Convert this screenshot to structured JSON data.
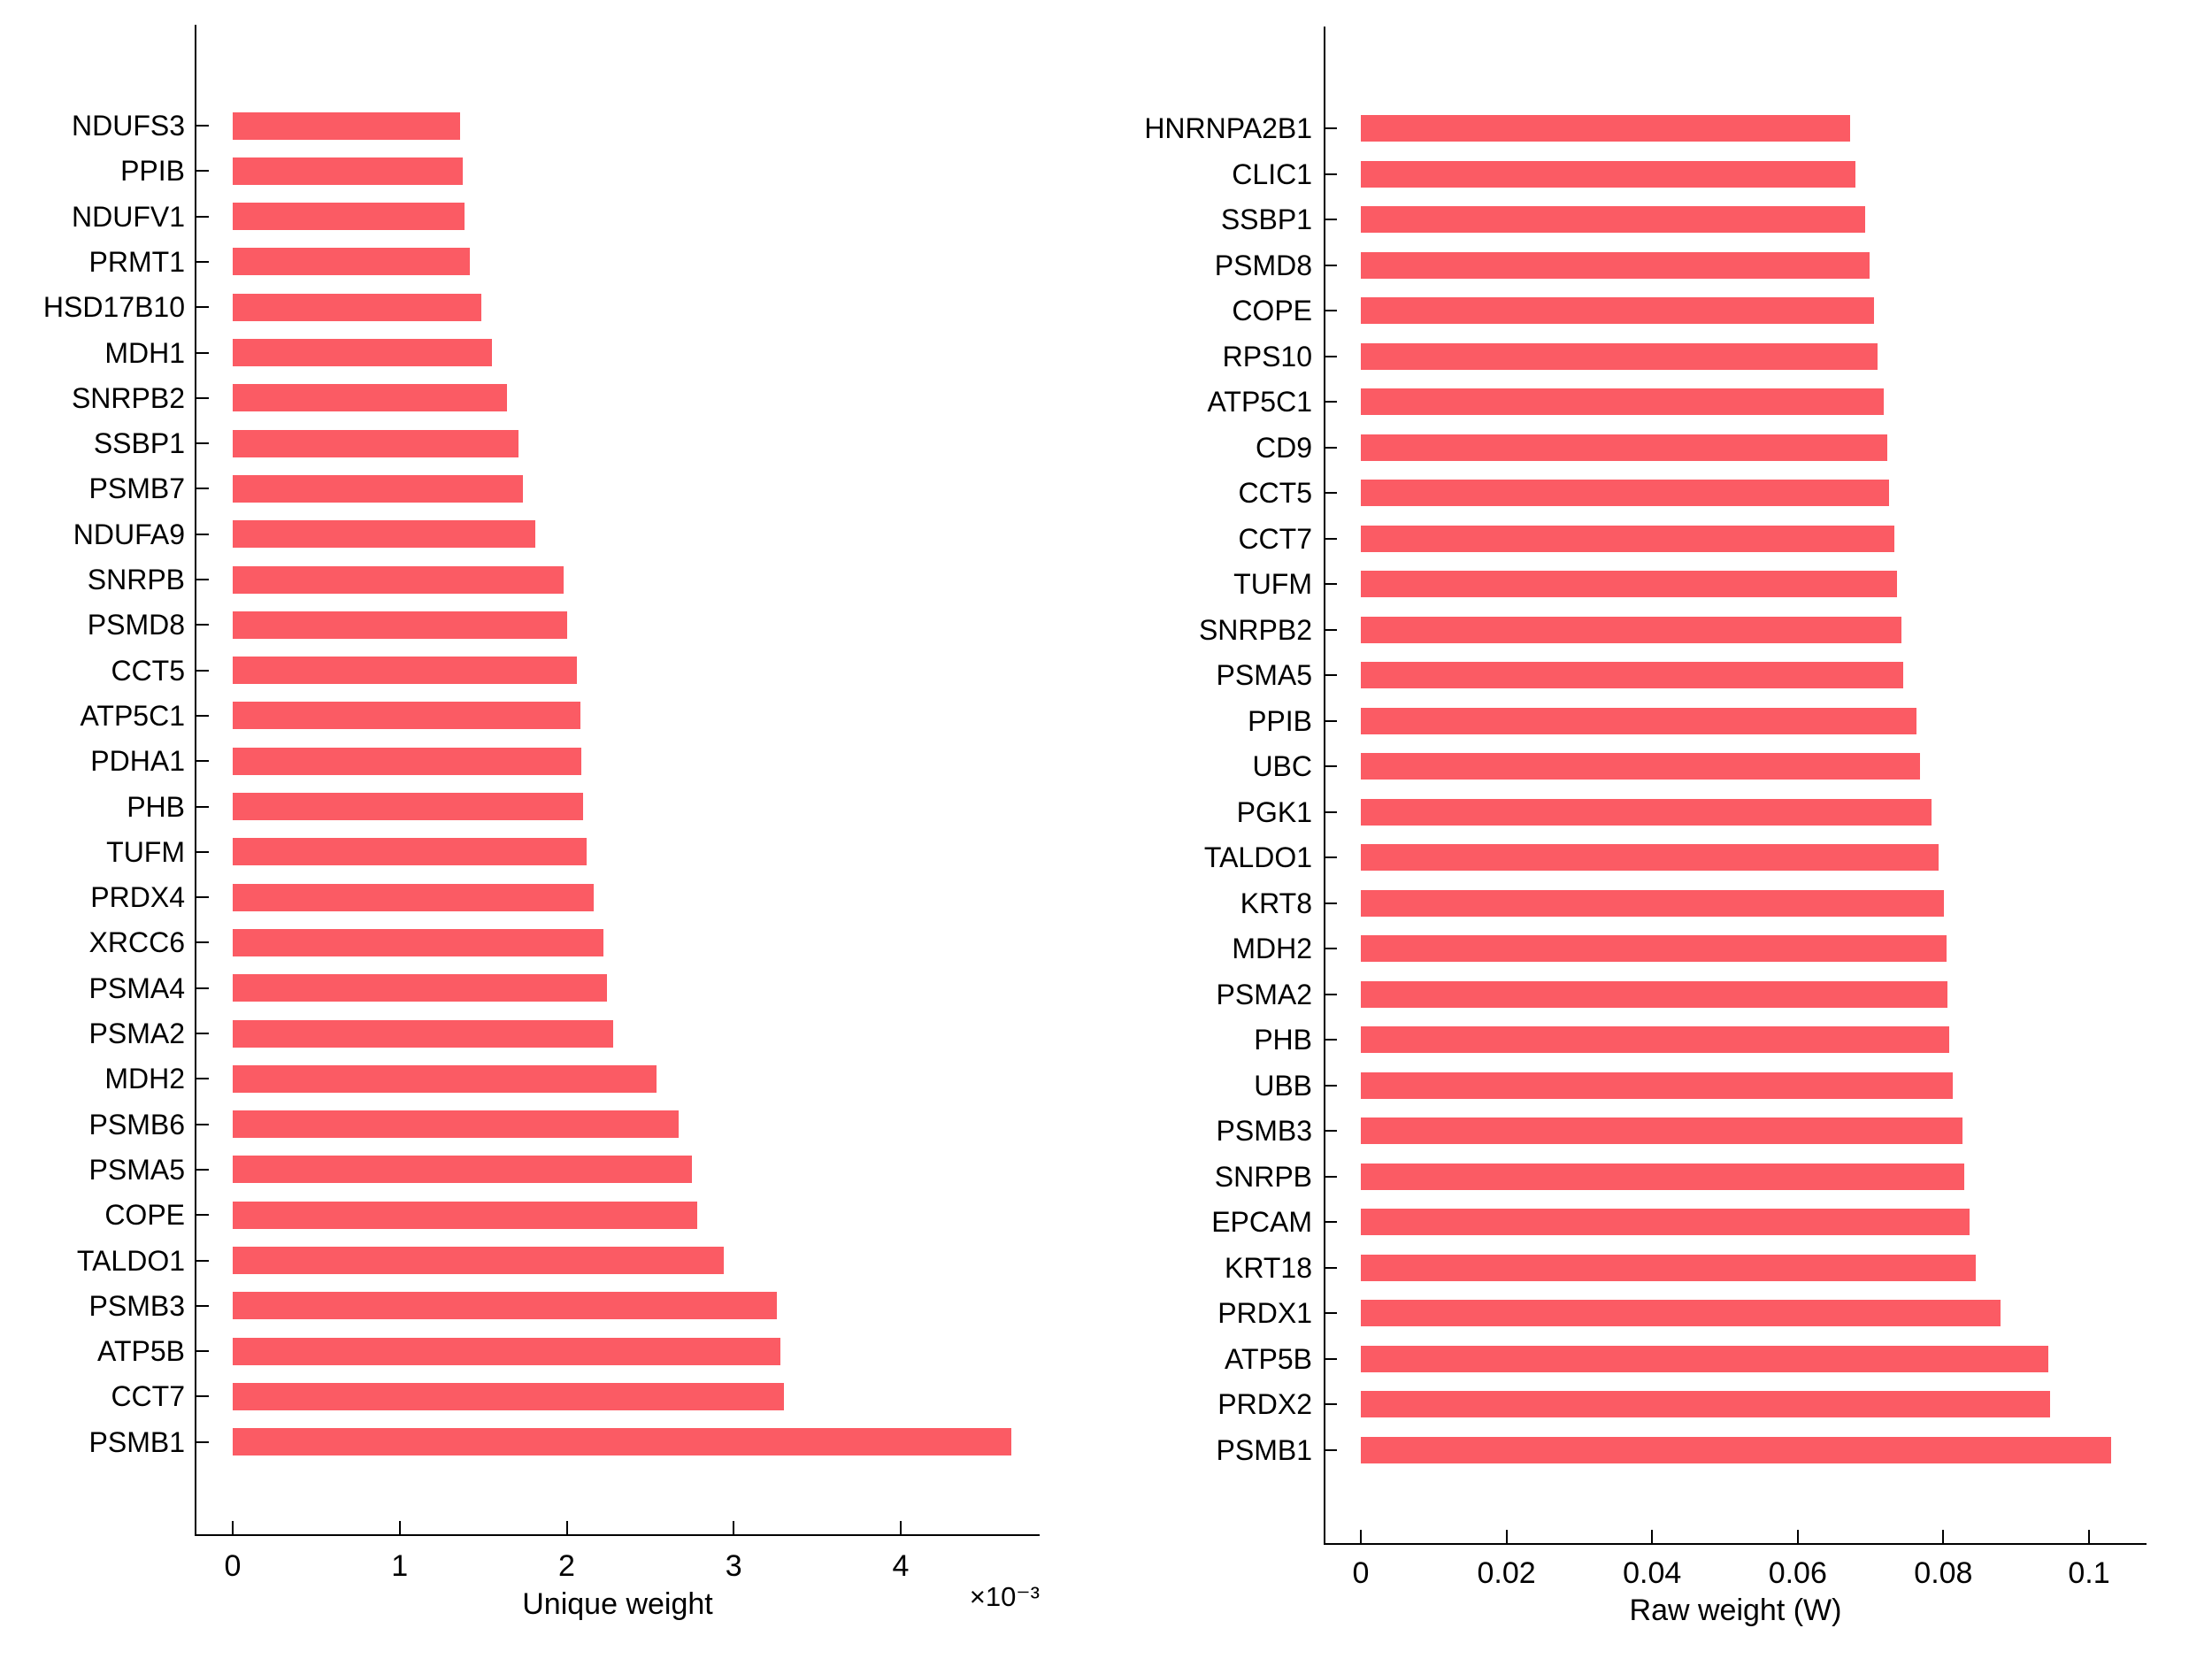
{
  "figure": {
    "background_color": "#ffffff",
    "bar_color": "#FB5B64",
    "axis_color": "#000000",
    "text_color": "#000000"
  },
  "chart_data": [
    {
      "type": "bar",
      "orientation": "horizontal",
      "xlabel": "Unique weight",
      "offset_text": "×10⁻³",
      "unit_multiplier": 0.001,
      "x_tick_values": [
        0,
        1,
        2,
        3,
        4
      ],
      "x_tick_labels": [
        "0",
        "1",
        "2",
        "3",
        "4"
      ],
      "xlim": [
        -0.22,
        4.83
      ],
      "grid": false,
      "legend": null,
      "categories": [
        "NDUFS3",
        "PPIB",
        "NDUFV1",
        "PRMT1",
        "HSD17B10",
        "MDH1",
        "SNRPB2",
        "SSBP1",
        "PSMB7",
        "NDUFA9",
        "SNRPB",
        "PSMD8",
        "CCT5",
        "ATP5C1",
        "PDHA1",
        "PHB",
        "TUFM",
        "PRDX4",
        "XRCC6",
        "PSMA4",
        "PSMA2",
        "MDH2",
        "PSMB6",
        "PSMA5",
        "COPE",
        "TALDO1",
        "PSMB3",
        "ATP5B",
        "CCT7",
        "PSMB1"
      ],
      "values": [
        1.36,
        1.38,
        1.39,
        1.42,
        1.49,
        1.55,
        1.64,
        1.71,
        1.74,
        1.81,
        1.98,
        2.0,
        2.06,
        2.08,
        2.09,
        2.1,
        2.12,
        2.16,
        2.22,
        2.24,
        2.28,
        2.54,
        2.67,
        2.75,
        2.78,
        2.94,
        3.26,
        3.28,
        3.3,
        4.66
      ]
    },
    {
      "type": "bar",
      "orientation": "horizontal",
      "xlabel": "Raw weight (W)",
      "offset_text": "",
      "unit_multiplier": 1,
      "x_tick_values": [
        0,
        0.02,
        0.04,
        0.06,
        0.08,
        0.1
      ],
      "x_tick_labels": [
        "0",
        "0.02",
        "0.04",
        "0.06",
        "0.08",
        "0.1"
      ],
      "xlim": [
        -0.005,
        0.108
      ],
      "grid": false,
      "legend": null,
      "categories": [
        "HNRNPA2B1",
        "CLIC1",
        "SSBP1",
        "PSMD8",
        "COPE",
        "RPS10",
        "ATP5C1",
        "CD9",
        "CCT5",
        "CCT7",
        "TUFM",
        "SNRPB2",
        "PSMA5",
        "PPIB",
        "UBC",
        "PGK1",
        "TALDO1",
        "KRT8",
        "MDH2",
        "PSMA2",
        "PHB",
        "UBB",
        "PSMB3",
        "SNRPB",
        "EPCAM",
        "KRT18",
        "PRDX1",
        "ATP5B",
        "PRDX2",
        "PSMB1"
      ],
      "values": [
        0.0672,
        0.0679,
        0.0692,
        0.0699,
        0.0705,
        0.071,
        0.0718,
        0.0723,
        0.0726,
        0.0733,
        0.0736,
        0.0743,
        0.0745,
        0.0763,
        0.0768,
        0.0784,
        0.0794,
        0.0801,
        0.0804,
        0.0806,
        0.0808,
        0.0813,
        0.0826,
        0.0829,
        0.0836,
        0.0845,
        0.0878,
        0.0944,
        0.0947,
        0.103
      ]
    }
  ]
}
